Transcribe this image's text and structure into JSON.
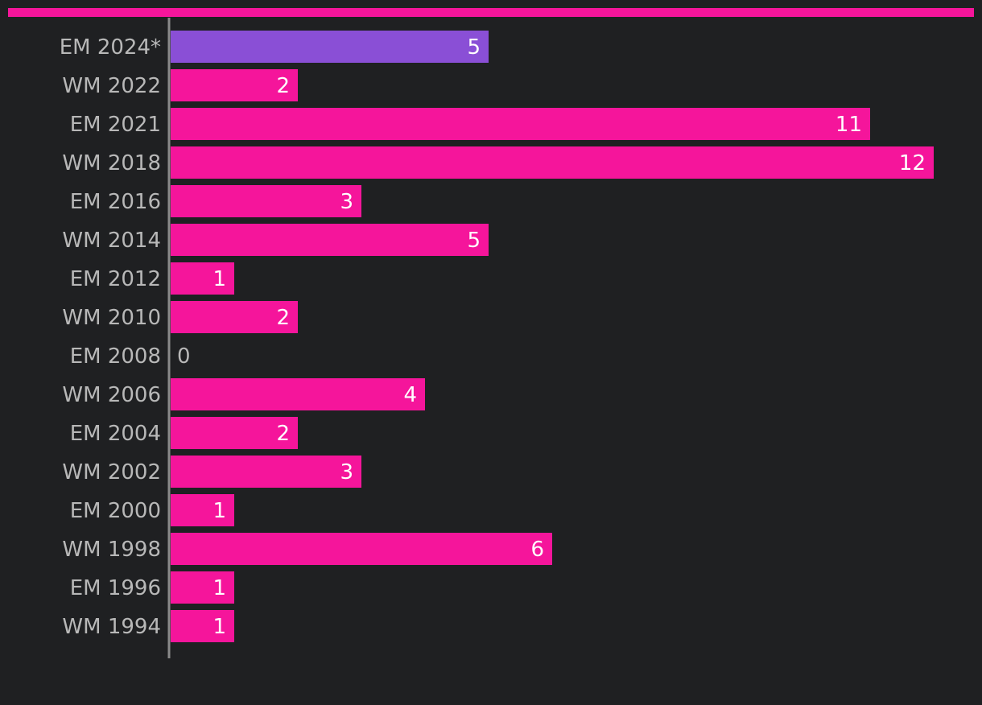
{
  "chart_data": {
    "type": "bar",
    "orientation": "horizontal",
    "categories": [
      "EM 2024*",
      "WM 2022",
      "EM 2021",
      "WM 2018",
      "EM 2016",
      "WM 2014",
      "EM 2012",
      "WM 2010",
      "EM 2008",
      "WM 2006",
      "EM 2004",
      "WM 2002",
      "EM 2000",
      "WM 1998",
      "EM 1996",
      "WM 1994"
    ],
    "values": [
      5,
      2,
      11,
      12,
      3,
      5,
      1,
      2,
      0,
      4,
      2,
      3,
      1,
      6,
      1,
      1
    ],
    "xlim": [
      0,
      12
    ],
    "highlight_category": "EM 2024*",
    "data_labels": true,
    "grid": false,
    "legend": "none",
    "title": "",
    "xlabel": "",
    "ylabel": ""
  },
  "colors": {
    "background": "#1f2022",
    "bar": "#f5159b",
    "highlight": "#8a4fd6",
    "top_rule": "#f5159b",
    "axis": "#8a8a8a",
    "category_text": "#b8b8b8",
    "value_text_inside": "#ffffff",
    "value_text_outside": "#b8b8b8"
  }
}
